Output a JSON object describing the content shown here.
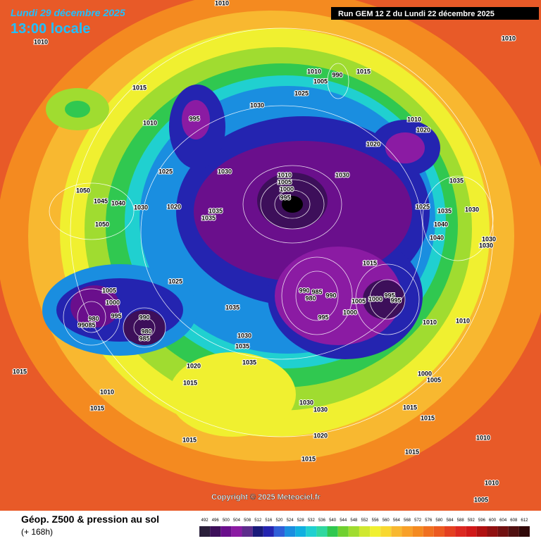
{
  "header": {
    "date": "Lundi 29 décembre 2025",
    "time": "13:00 locale",
    "run": "Run GEM 12 Z du Lundi 22 décembre 2025"
  },
  "map": {
    "copyright": "Copyright © 2025 Meteociel.fr",
    "isobar_labels": [
      1010,
      1010,
      1015,
      1010,
      995,
      1030,
      1025,
      1010,
      990,
      1005,
      1015,
      1010,
      1010,
      1020,
      1020,
      1030,
      1035,
      1025,
      1035,
      1030,
      1040,
      1040,
      1030,
      1030,
      1025,
      1030,
      1020,
      1050,
      1045,
      1040,
      1030,
      1050,
      1035,
      1035,
      1010,
      1005,
      1000,
      995,
      1015,
      1025,
      1005,
      1000,
      995,
      990,
      980,
      985,
      980,
      985,
      990,
      1035,
      1030,
      1035,
      1035,
      1020,
      1015,
      1015,
      1010,
      1015,
      1015,
      980,
      990,
      985,
      990,
      1000,
      1005,
      995,
      1000,
      995,
      995,
      1010,
      1010,
      1000,
      1005,
      1030,
      1030,
      1015,
      1015,
      1020,
      1015,
      1015,
      1010,
      1010,
      1005
    ]
  },
  "legend": {
    "title": "Géop. Z500 & pression au sol",
    "lead_time": "(+ 168h)",
    "levels": [
      492,
      496,
      500,
      504,
      508,
      512,
      516,
      520,
      524,
      528,
      532,
      536,
      540,
      544,
      548,
      552,
      556,
      560,
      564,
      568,
      572,
      576,
      580,
      584,
      588,
      592,
      596,
      600,
      604,
      608,
      612
    ],
    "colors": [
      "#2a1f3a",
      "#3d0f5a",
      "#6a0f8c",
      "#8b1ba3",
      "#5d2c8c",
      "#1a1a7a",
      "#2424b0",
      "#2f5fd8",
      "#1a8ee0",
      "#10b0e0",
      "#20d0d0",
      "#30d8a0",
      "#30c850",
      "#70d030",
      "#a0dc30",
      "#d0e830",
      "#f0f030",
      "#f8d830",
      "#f8b830",
      "#f8a028",
      "#f48a20",
      "#f07020",
      "#ec5a20",
      "#e44020",
      "#dc2820",
      "#d01818",
      "#b01010",
      "#901010",
      "#701010",
      "#501010",
      "#300808"
    ]
  }
}
